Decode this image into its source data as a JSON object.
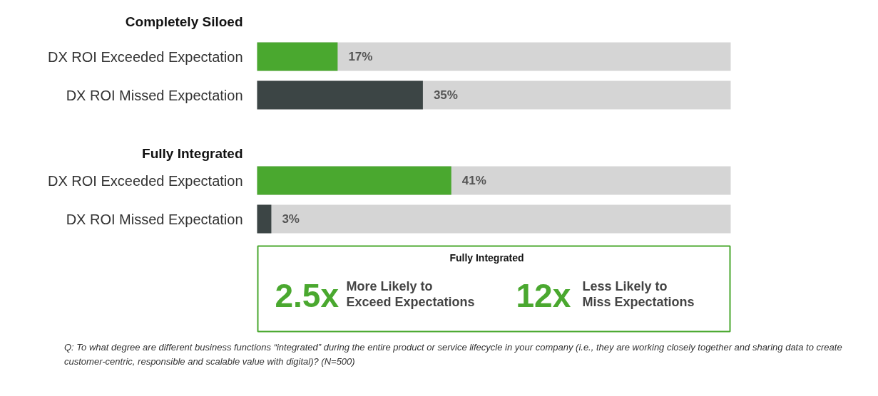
{
  "chart_data": {
    "type": "bar",
    "orientation": "horizontal",
    "categories": [
      "DX ROI Exceeded Expectation",
      "DX ROI Missed Expectation",
      "DX ROI Exceeded Expectation",
      "DX ROI Missed Expectation"
    ],
    "series": [
      {
        "colors": [
          "#4aa82f",
          "#3c4545",
          "#4aa82f",
          "#3c4545"
        ],
        "values": [
          17,
          35,
          41,
          3
        ],
        "value_labels": [
          "17%",
          "35%",
          "41%",
          "3%"
        ]
      }
    ],
    "tick_labels": false,
    "grid": false,
    "annotations": [
      "Completely Siloed",
      "Fully Integrated",
      "Fully Integrated",
      "2.5x",
      "More Likely to Exceed Expectations",
      "12x",
      "Less Likely to Miss Expectations",
      "Q: To what degree are different business functions “integrated” during the entire product or service lifecycle in your company (i.e., they are working closely together and sharing data to create customer-centric, responsible and scalable value with digital)? (N=500)"
    ]
  }
}
